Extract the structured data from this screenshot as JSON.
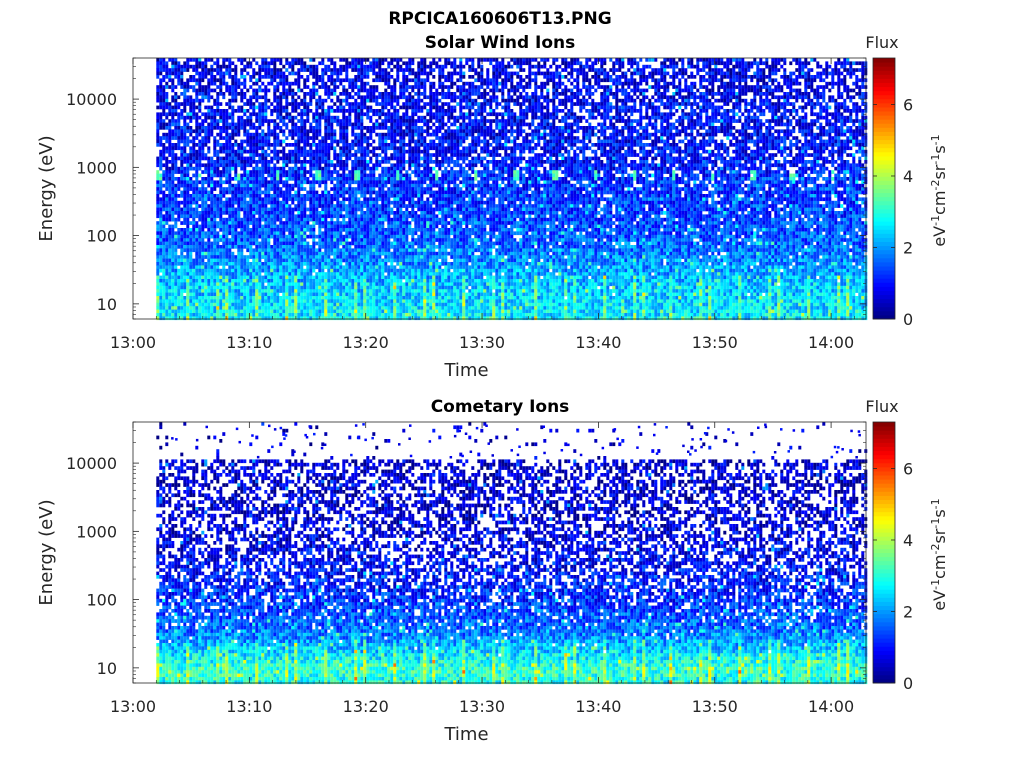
{
  "figure_title": "RPCICA160606T13.PNG",
  "chart_data": [
    {
      "type": "heatmap",
      "title": "Solar Wind Ions",
      "xlabel": "Time",
      "ylabel": "Energy (eV)",
      "x_ticks": [
        "13:00",
        "13:10",
        "13:20",
        "13:30",
        "13:40",
        "13:50",
        "14:00"
      ],
      "x_range": [
        "13:00",
        "14:03"
      ],
      "data_start": "13:02",
      "y_scale": "log",
      "y_ticks": [
        10,
        100,
        1000,
        10000
      ],
      "y_range": [
        6,
        40000
      ],
      "colorbar": {
        "label": "Flux",
        "units": "eV-1cm-2sr-1s-1",
        "ticks": [
          0,
          2,
          4,
          6
        ],
        "range": [
          0,
          7.3
        ],
        "colormap": "jet"
      },
      "profile": [
        {
          "energy_eV": 40000,
          "flux_level": 0.7,
          "fill_fraction": 0.65
        },
        {
          "energy_eV": 10000,
          "flux_level": 0.8,
          "fill_fraction": 0.72
        },
        {
          "energy_eV": 1000,
          "flux_level": 1.0,
          "fill_fraction": 0.8
        },
        {
          "energy_eV": 700,
          "flux_level": 1.2,
          "fill_fraction": 0.85
        },
        {
          "energy_eV": 300,
          "flux_level": 1.3,
          "fill_fraction": 0.9
        },
        {
          "energy_eV": 100,
          "flux_level": 1.5,
          "fill_fraction": 0.92
        },
        {
          "energy_eV": 50,
          "flux_level": 1.8,
          "fill_fraction": 0.95
        },
        {
          "energy_eV": 25,
          "flux_level": 2.2,
          "fill_fraction": 0.98
        },
        {
          "energy_eV": 10,
          "flux_level": 2.5,
          "fill_fraction": 1.0
        },
        {
          "energy_eV": 6,
          "flux_level": 2.6,
          "fill_fraction": 1.0
        }
      ],
      "features": [
        {
          "energy_eV": 750,
          "flux_level": 3.0,
          "period_min": 3.4,
          "note": "periodic bright spots"
        }
      ]
    },
    {
      "type": "heatmap",
      "title": "Cometary Ions",
      "xlabel": "Time",
      "ylabel": "Energy (eV)",
      "x_ticks": [
        "13:00",
        "13:10",
        "13:20",
        "13:30",
        "13:40",
        "13:50",
        "14:00"
      ],
      "x_range": [
        "13:00",
        "14:03"
      ],
      "data_start": "13:02",
      "y_scale": "log",
      "y_ticks": [
        10,
        100,
        1000,
        10000
      ],
      "y_range": [
        6,
        40000
      ],
      "colorbar": {
        "label": "Flux",
        "units": "eV-1cm-2sr-1s-1",
        "ticks": [
          0,
          2,
          4,
          6
        ],
        "range": [
          0,
          7.3
        ],
        "colormap": "jet"
      },
      "profile": [
        {
          "energy_eV": 40000,
          "flux_level": 0.5,
          "fill_fraction": 0.04
        },
        {
          "energy_eV": 12500,
          "flux_level": 0.5,
          "fill_fraction": 0.04
        },
        {
          "energy_eV": 11000,
          "flux_level": 0.5,
          "fill_fraction": 0.55
        },
        {
          "energy_eV": 1000,
          "flux_level": 0.6,
          "fill_fraction": 0.55
        },
        {
          "energy_eV": 300,
          "flux_level": 0.9,
          "fill_fraction": 0.65
        },
        {
          "energy_eV": 100,
          "flux_level": 1.2,
          "fill_fraction": 0.8
        },
        {
          "energy_eV": 30,
          "flux_level": 1.8,
          "fill_fraction": 0.95
        },
        {
          "energy_eV": 15,
          "flux_level": 2.6,
          "fill_fraction": 1.0
        },
        {
          "energy_eV": 10,
          "flux_level": 3.1,
          "fill_fraction": 1.0
        },
        {
          "energy_eV": 6,
          "flux_level": 2.9,
          "fill_fraction": 1.0
        }
      ]
    }
  ]
}
